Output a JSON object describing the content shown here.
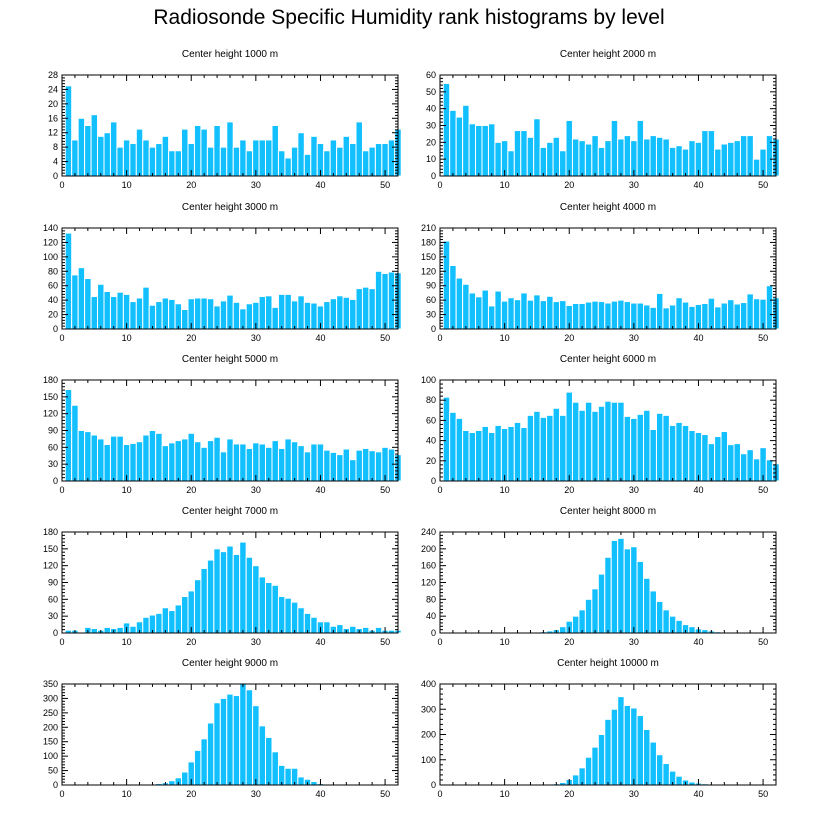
{
  "title": "Radiosonde Specific Humidity rank histograms by level",
  "colors": {
    "bar": "#12BFFF",
    "bar_edge": "#ffffff",
    "axis": "#000000"
  },
  "chart_data": [
    {
      "type": "bar",
      "title": "Center height 1000 m",
      "xlim": [
        0,
        52
      ],
      "ylim": [
        0,
        28
      ],
      "xticks": [
        0,
        10,
        20,
        30,
        40,
        50
      ],
      "yticks": [
        0,
        4,
        8,
        12,
        16,
        20,
        24,
        28
      ],
      "values": [
        25,
        10,
        16,
        14,
        17,
        11,
        12,
        15,
        8,
        10,
        9,
        13,
        10,
        8,
        9,
        11,
        7,
        7,
        13,
        9,
        14,
        13,
        8,
        14,
        8,
        15,
        8,
        10,
        7,
        10,
        10,
        10,
        14,
        7,
        5,
        8,
        12,
        6,
        11,
        9,
        7,
        10,
        8,
        11,
        9,
        15,
        7,
        8,
        9,
        9,
        10,
        13
      ]
    },
    {
      "type": "bar",
      "title": "Center height 2000 m",
      "xlim": [
        0,
        52
      ],
      "ylim": [
        0,
        60
      ],
      "xticks": [
        0,
        10,
        20,
        30,
        40,
        50
      ],
      "yticks": [
        0,
        10,
        20,
        30,
        40,
        50,
        60
      ],
      "values": [
        55,
        39,
        35,
        42,
        31,
        30,
        30,
        31,
        20,
        21,
        15,
        27,
        27,
        23,
        34,
        17,
        20,
        23,
        15,
        33,
        22,
        21,
        19,
        24,
        17,
        21,
        33,
        22,
        24,
        21,
        33,
        22,
        24,
        23,
        22,
        17,
        18,
        16,
        21,
        20,
        27,
        27,
        16,
        19,
        20,
        21,
        24,
        24,
        10,
        16,
        24,
        22
      ]
    },
    {
      "type": "bar",
      "title": "Center height 3000 m",
      "xlim": [
        0,
        52
      ],
      "ylim": [
        0,
        140
      ],
      "xticks": [
        0,
        10,
        20,
        30,
        40,
        50
      ],
      "yticks": [
        0,
        20,
        40,
        60,
        80,
        100,
        120,
        140
      ],
      "values": [
        133,
        75,
        85,
        70,
        45,
        62,
        52,
        45,
        51,
        48,
        38,
        43,
        58,
        33,
        38,
        43,
        41,
        35,
        27,
        42,
        43,
        43,
        42,
        32,
        39,
        47,
        37,
        28,
        35,
        37,
        45,
        46,
        30,
        48,
        48,
        39,
        46,
        37,
        36,
        32,
        38,
        42,
        46,
        44,
        41,
        56,
        58,
        56,
        80,
        77,
        79,
        78
      ]
    },
    {
      "type": "bar",
      "title": "Center height 4000 m",
      "xlim": [
        0,
        52
      ],
      "ylim": [
        0,
        210
      ],
      "xticks": [
        0,
        10,
        20,
        30,
        40,
        50
      ],
      "yticks": [
        0,
        30,
        60,
        90,
        120,
        150,
        180,
        210
      ],
      "values": [
        183,
        132,
        106,
        93,
        75,
        67,
        81,
        48,
        79,
        58,
        65,
        61,
        75,
        60,
        71,
        59,
        68,
        57,
        59,
        49,
        53,
        53,
        56,
        58,
        57,
        54,
        58,
        60,
        57,
        54,
        54,
        50,
        45,
        74,
        44,
        50,
        65,
        56,
        47,
        51,
        53,
        64,
        46,
        54,
        61,
        52,
        55,
        73,
        63,
        62,
        90,
        65
      ]
    },
    {
      "type": "bar",
      "title": "Center height 5000 m",
      "xlim": [
        0,
        52
      ],
      "ylim": [
        0,
        180
      ],
      "xticks": [
        0,
        10,
        20,
        30,
        40,
        50
      ],
      "yticks": [
        0,
        30,
        60,
        90,
        120,
        150,
        180
      ],
      "values": [
        163,
        135,
        90,
        88,
        82,
        75,
        65,
        80,
        80,
        65,
        67,
        70,
        82,
        90,
        85,
        63,
        68,
        72,
        75,
        85,
        70,
        60,
        72,
        78,
        52,
        75,
        66,
        66,
        58,
        68,
        66,
        60,
        72,
        58,
        75,
        70,
        63,
        52,
        66,
        66,
        55,
        51,
        47,
        57,
        38,
        55,
        58,
        54,
        52,
        60,
        57,
        47
      ]
    },
    {
      "type": "bar",
      "title": "Center height 6000 m",
      "xlim": [
        0,
        52
      ],
      "ylim": [
        0,
        100
      ],
      "xticks": [
        0,
        10,
        20,
        30,
        40,
        50
      ],
      "yticks": [
        0,
        20,
        40,
        60,
        80,
        100
      ],
      "values": [
        83,
        68,
        62,
        50,
        48,
        50,
        54,
        48,
        55,
        52,
        54,
        58,
        53,
        65,
        69,
        63,
        65,
        72,
        65,
        88,
        78,
        70,
        78,
        69,
        74,
        79,
        78,
        78,
        64,
        62,
        66,
        70,
        51,
        67,
        65,
        55,
        58,
        55,
        50,
        48,
        46,
        37,
        44,
        49,
        36,
        37,
        27,
        31,
        22,
        33,
        21,
        17
      ]
    },
    {
      "type": "bar",
      "title": "Center height 7000 m",
      "xlim": [
        0,
        52
      ],
      "ylim": [
        0,
        180
      ],
      "xticks": [
        0,
        10,
        20,
        30,
        40,
        50
      ],
      "yticks": [
        0,
        30,
        60,
        90,
        120,
        150,
        180
      ],
      "values": [
        5,
        5,
        0,
        10,
        8,
        5,
        10,
        8,
        10,
        18,
        12,
        20,
        28,
        32,
        35,
        45,
        40,
        50,
        65,
        75,
        95,
        115,
        130,
        150,
        145,
        155,
        140,
        162,
        135,
        120,
        100,
        90,
        85,
        65,
        62,
        55,
        45,
        35,
        28,
        20,
        20,
        12,
        15,
        8,
        12,
        8,
        10,
        5,
        10,
        5,
        5,
        5
      ]
    },
    {
      "type": "bar",
      "title": "Center height 8000 m",
      "xlim": [
        0,
        52
      ],
      "ylim": [
        0,
        240
      ],
      "xticks": [
        0,
        10,
        20,
        30,
        40,
        50
      ],
      "yticks": [
        0,
        40,
        80,
        120,
        160,
        200,
        240
      ],
      "values": [
        0,
        0,
        0,
        0,
        0,
        0,
        0,
        0,
        0,
        0,
        0,
        0,
        0,
        0,
        2,
        3,
        5,
        8,
        15,
        28,
        40,
        55,
        80,
        105,
        140,
        180,
        220,
        225,
        200,
        205,
        170,
        130,
        100,
        75,
        55,
        40,
        30,
        20,
        15,
        10,
        8,
        5,
        3,
        2,
        1,
        1,
        0,
        0,
        0,
        0,
        0,
        0
      ]
    },
    {
      "type": "bar",
      "title": "Center height 9000 m",
      "xlim": [
        0,
        52
      ],
      "ylim": [
        0,
        350
      ],
      "xticks": [
        0,
        10,
        20,
        30,
        40,
        50
      ],
      "yticks": [
        0,
        50,
        100,
        150,
        200,
        250,
        300,
        350
      ],
      "values": [
        0,
        0,
        0,
        0,
        0,
        0,
        0,
        0,
        0,
        0,
        0,
        0,
        0,
        3,
        5,
        8,
        15,
        25,
        45,
        80,
        120,
        160,
        215,
        285,
        300,
        315,
        310,
        350,
        330,
        275,
        205,
        165,
        115,
        68,
        58,
        58,
        28,
        20,
        12,
        5,
        3,
        2,
        1,
        0,
        0,
        0,
        0,
        0,
        0,
        0,
        0,
        0
      ]
    },
    {
      "type": "bar",
      "title": "Center height 10000 m",
      "xlim": [
        0,
        52
      ],
      "ylim": [
        0,
        400
      ],
      "xticks": [
        0,
        10,
        20,
        30,
        40,
        50
      ],
      "yticks": [
        0,
        100,
        200,
        300,
        400
      ],
      "values": [
        0,
        0,
        0,
        0,
        0,
        0,
        0,
        0,
        0,
        0,
        0,
        0,
        0,
        0,
        0,
        0,
        2,
        5,
        10,
        22,
        40,
        68,
        110,
        150,
        200,
        260,
        300,
        350,
        315,
        305,
        275,
        220,
        170,
        120,
        85,
        55,
        35,
        20,
        12,
        8,
        5,
        3,
        2,
        1,
        1,
        0,
        0,
        0,
        0,
        0,
        0,
        0
      ]
    }
  ]
}
